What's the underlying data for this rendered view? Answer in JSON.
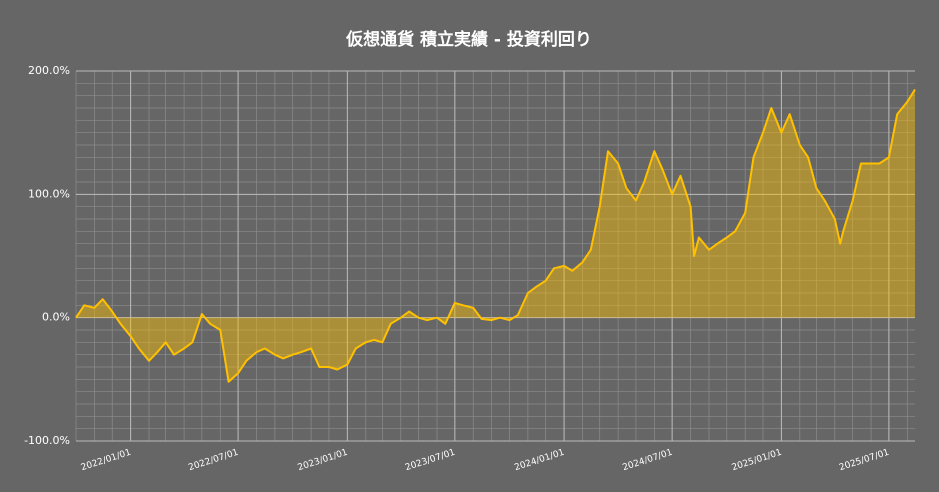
{
  "chart_data": {
    "type": "area",
    "title": "仮想通貨 積立実績 - 投資利回り",
    "color": "#ffc000",
    "grid": true,
    "xlim": [
      "2021/10/01",
      "2025/08/14"
    ],
    "xticks": [
      "2022/01/01",
      "2022/07/01",
      "2023/01/01",
      "2023/07/01",
      "2024/01/01",
      "2024/07/01",
      "2025/01/01",
      "2025/07/01"
    ],
    "ylim": [
      -100,
      200
    ],
    "yticks": [
      {
        "value": -100,
        "label": "-100.0%"
      },
      {
        "value": 0,
        "label": "0.0%"
      },
      {
        "value": 100,
        "label": "100.0%"
      },
      {
        "value": 200,
        "label": "200.0%"
      }
    ],
    "x": [
      "2021/10/01",
      "2021/10/15",
      "2021/11/01",
      "2021/11/15",
      "2021/12/01",
      "2021/12/15",
      "2022/01/01",
      "2022/01/15",
      "2022/02/01",
      "2022/02/15",
      "2022/03/01",
      "2022/03/15",
      "2022/04/01",
      "2022/04/15",
      "2022/05/01",
      "2022/05/15",
      "2022/06/01",
      "2022/06/15",
      "2022/07/01",
      "2022/07/15",
      "2022/08/01",
      "2022/08/15",
      "2022/09/01",
      "2022/09/15",
      "2022/10/01",
      "2022/10/15",
      "2022/11/01",
      "2022/11/15",
      "2022/12/01",
      "2022/12/15",
      "2023/01/01",
      "2023/01/15",
      "2023/02/01",
      "2023/02/15",
      "2023/03/01",
      "2023/03/15",
      "2023/04/01",
      "2023/04/15",
      "2023/05/01",
      "2023/05/15",
      "2023/06/01",
      "2023/06/15",
      "2023/07/01",
      "2023/07/15",
      "2023/08/01",
      "2023/08/15",
      "2023/09/01",
      "2023/09/15",
      "2023/10/01",
      "2023/10/15",
      "2023/11/01",
      "2023/11/15",
      "2023/12/01",
      "2023/12/15",
      "2024/01/01",
      "2024/01/15",
      "2024/02/01",
      "2024/02/15",
      "2024/03/01",
      "2024/03/15",
      "2024/04/01",
      "2024/04/15",
      "2024/05/01",
      "2024/05/15",
      "2024/06/01",
      "2024/06/15",
      "2024/07/01",
      "2024/07/15",
      "2024/08/01",
      "2024/08/07",
      "2024/08/15",
      "2024/09/01",
      "2024/09/15",
      "2024/10/01",
      "2024/10/15",
      "2024/11/01",
      "2024/11/15",
      "2024/12/01",
      "2024/12/15",
      "2025/01/01",
      "2025/01/15",
      "2025/02/01",
      "2025/02/15",
      "2025/03/01",
      "2025/03/15",
      "2025/04/01",
      "2025/04/10",
      "2025/04/15",
      "2025/05/01",
      "2025/05/15",
      "2025/06/01",
      "2025/06/15",
      "2025/07/01",
      "2025/07/15",
      "2025/08/01",
      "2025/08/14"
    ],
    "values": [
      0,
      10,
      8,
      15,
      5,
      -5,
      -15,
      -25,
      -35,
      -28,
      -20,
      -30,
      -25,
      -20,
      3,
      -5,
      -10,
      -52,
      -45,
      -35,
      -28,
      -25,
      -30,
      -33,
      -30,
      -28,
      -25,
      -40,
      -40,
      -42,
      -38,
      -25,
      -20,
      -18,
      -20,
      -5,
      0,
      5,
      0,
      -2,
      0,
      -5,
      12,
      10,
      8,
      -1,
      -2,
      0,
      -2,
      2,
      20,
      25,
      30,
      40,
      42,
      38,
      45,
      55,
      90,
      135,
      125,
      105,
      95,
      110,
      135,
      120,
      100,
      115,
      90,
      50,
      65,
      55,
      60,
      65,
      70,
      85,
      130,
      150,
      170,
      150,
      165,
      140,
      130,
      105,
      95,
      80,
      60,
      70,
      95,
      125,
      125,
      125,
      130,
      165,
      175,
      185
    ]
  }
}
